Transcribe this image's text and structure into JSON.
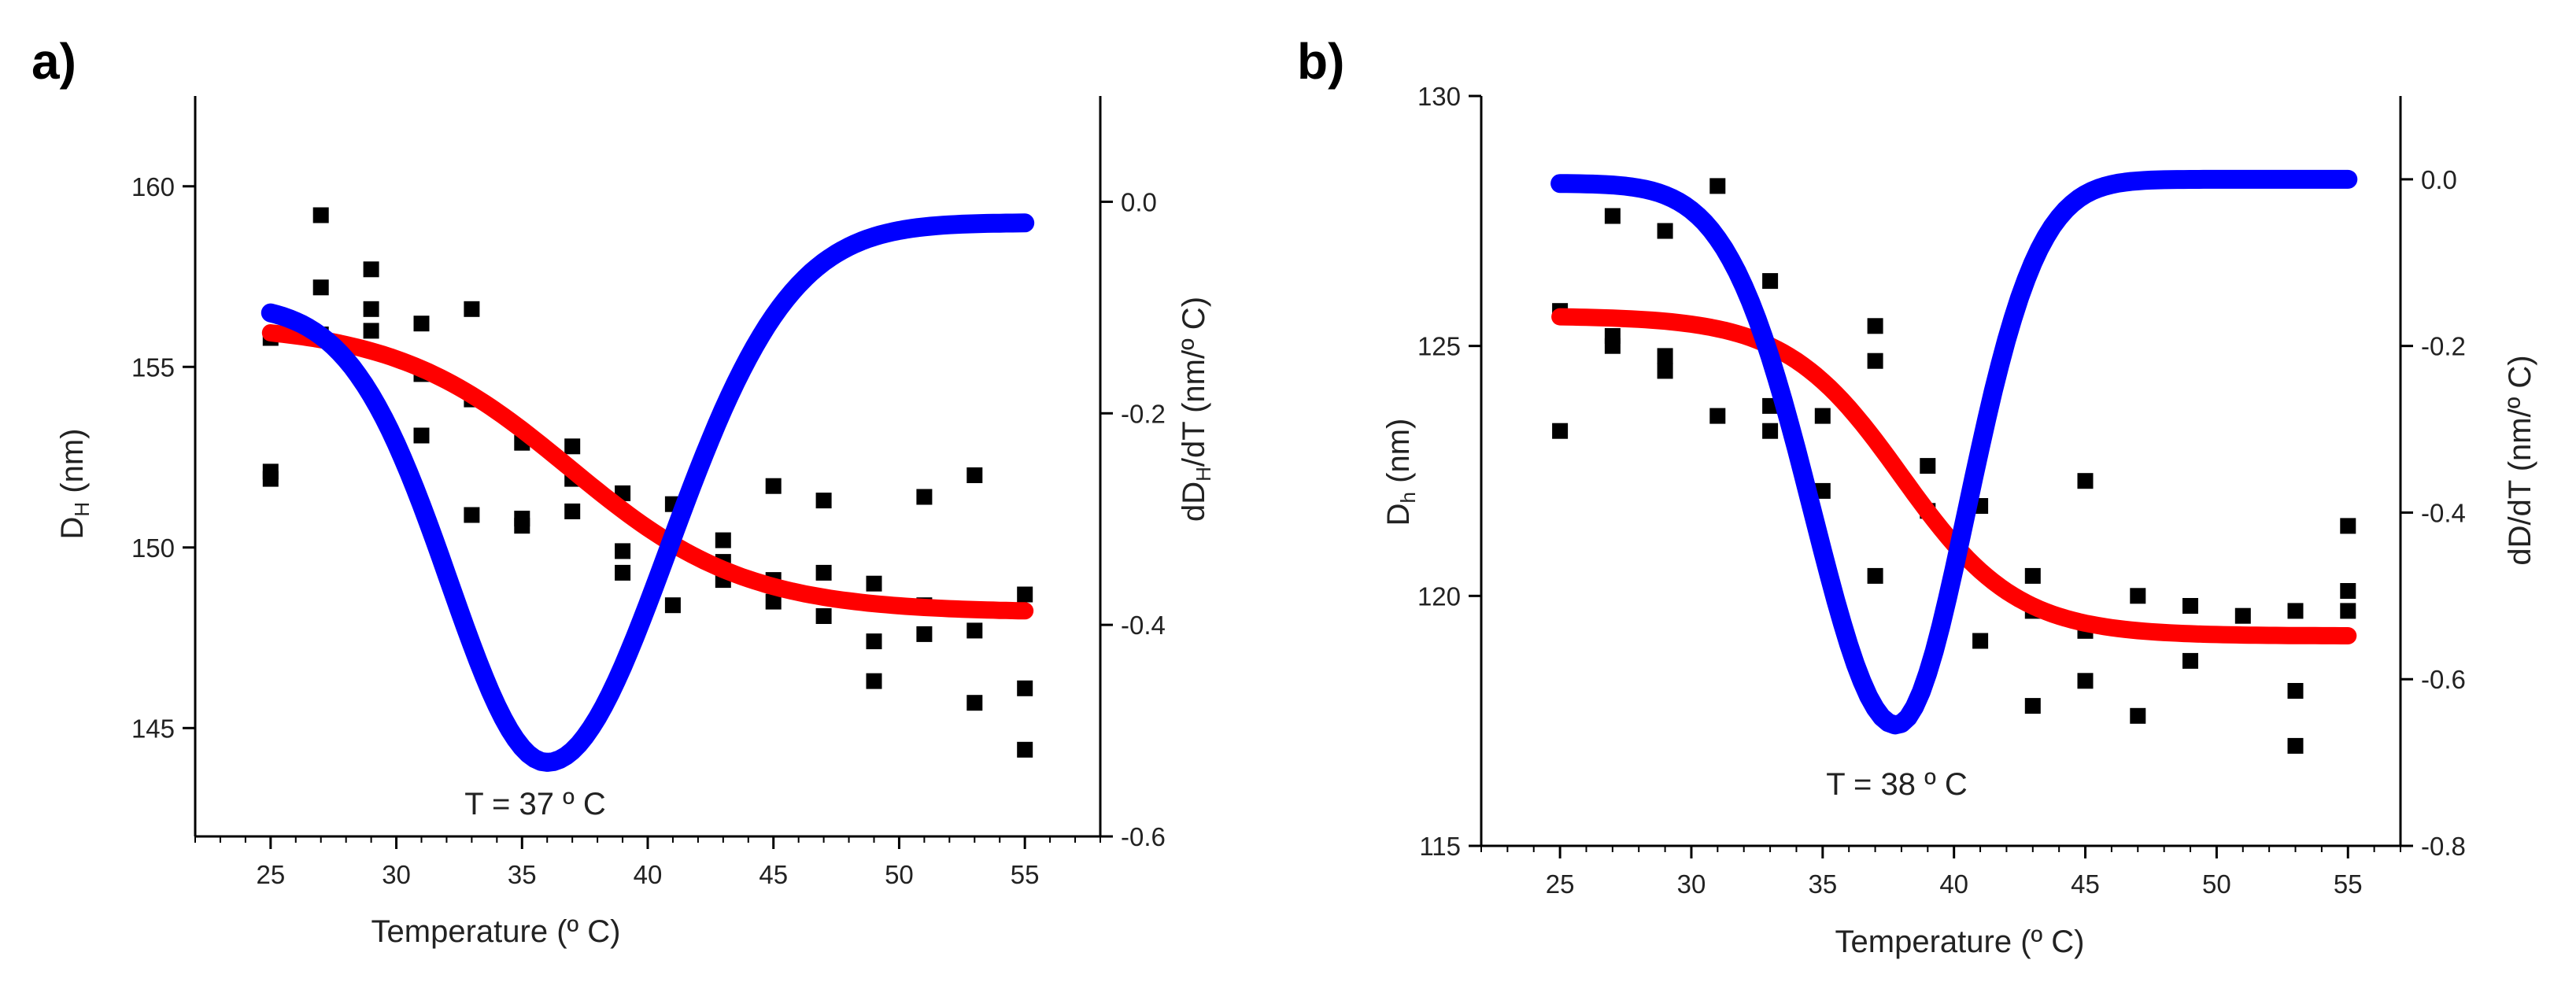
{
  "chart_data": [
    {
      "panel_label": "a)",
      "type": "scatter",
      "title": "",
      "xlabel": "Temperature (º C)",
      "ylabel": {
        "main": "D",
        "sub": "H",
        "unit": " (nm)"
      },
      "y2label": {
        "pre": "dD",
        "sub": "H",
        "post": "/dT (nm/º C)"
      },
      "annotation": "T = 37 º C",
      "xlim": [
        22,
        58
      ],
      "ylim": [
        142,
        162.5
      ],
      "y2lim": [
        -0.6,
        0.1
      ],
      "xticks": [
        25,
        30,
        35,
        40,
        45,
        50,
        55
      ],
      "yticks": [
        145,
        150,
        155,
        160
      ],
      "y2ticks": [
        -0.6,
        -0.4,
        -0.2,
        0.0
      ],
      "y2tick_labels": [
        "-0.6",
        "-0.4",
        "-0.2",
        "0.0"
      ],
      "grid": false,
      "colors": {
        "points": "#000000",
        "fit": "#ff0000",
        "derivative": "#0000ff"
      },
      "points": [
        [
          25,
          155.8
        ],
        [
          25,
          152.1
        ],
        [
          25,
          151.9
        ],
        [
          27,
          159.2
        ],
        [
          27,
          157.2
        ],
        [
          27,
          155.9
        ],
        [
          29,
          157.7
        ],
        [
          29,
          156.6
        ],
        [
          29,
          156.0
        ],
        [
          31,
          156.2
        ],
        [
          31,
          154.8
        ],
        [
          31,
          153.1
        ],
        [
          33,
          156.6
        ],
        [
          33,
          154.1
        ],
        [
          33,
          150.9
        ],
        [
          35,
          152.9
        ],
        [
          35,
          150.8
        ],
        [
          35,
          150.6
        ],
        [
          37,
          152.8
        ],
        [
          37,
          151.9
        ],
        [
          37,
          151.0
        ],
        [
          39,
          151.5
        ],
        [
          39,
          149.9
        ],
        [
          39,
          149.3
        ],
        [
          41,
          151.2
        ],
        [
          41,
          150.0
        ],
        [
          41,
          148.4
        ],
        [
          43,
          150.2
        ],
        [
          43,
          149.6
        ],
        [
          43,
          149.1
        ],
        [
          45,
          151.7
        ],
        [
          45,
          149.1
        ],
        [
          45,
          148.5
        ],
        [
          47,
          151.3
        ],
        [
          47,
          149.3
        ],
        [
          47,
          148.1
        ],
        [
          49,
          149.0
        ],
        [
          49,
          147.4
        ],
        [
          49,
          146.3
        ],
        [
          51,
          151.4
        ],
        [
          51,
          148.4
        ],
        [
          51,
          147.6
        ],
        [
          53,
          152.0
        ],
        [
          53,
          147.7
        ],
        [
          53,
          145.7
        ],
        [
          55,
          148.7
        ],
        [
          55,
          146.1
        ],
        [
          55,
          144.4
        ]
      ],
      "fit": {
        "y_high": 156.2,
        "y_low": 148.2,
        "x0": 36.9,
        "dx": 3.5,
        "x_range": [
          25,
          55
        ]
      },
      "derivative": {
        "y2_start": -0.105,
        "y2_min": -0.53,
        "y2_end": -0.02,
        "x_min": 36,
        "width_left": 5.5,
        "width_right": 6.8,
        "x_range": [
          25,
          55
        ]
      }
    },
    {
      "panel_label": "b)",
      "type": "scatter",
      "title": "",
      "xlabel": "Temperature (º C)",
      "ylabel": {
        "main": "D",
        "sub": "h",
        "unit": " (nm)"
      },
      "y2label": {
        "pre": "dD/dT (nm/º C)",
        "sub": "",
        "post": ""
      },
      "annotation": "T = 38 º C",
      "xlim": [
        22,
        57
      ],
      "ylim": [
        115,
        130
      ],
      "y2lim": [
        -0.8,
        0.1
      ],
      "xticks": [
        25,
        30,
        35,
        40,
        45,
        50,
        55
      ],
      "yticks": [
        115,
        120,
        125,
        130
      ],
      "y2ticks": [
        -0.8,
        -0.6,
        -0.4,
        -0.2,
        0.0
      ],
      "y2tick_labels": [
        "-0.8",
        "-0.6",
        "-0.4",
        "-0.2",
        "0.0"
      ],
      "grid": false,
      "colors": {
        "points": "#000000",
        "fit": "#ff0000",
        "derivative": "#0000ff"
      },
      "points": [
        [
          25,
          125.7
        ],
        [
          25,
          123.3
        ],
        [
          27,
          125.2
        ],
        [
          27,
          125.0
        ],
        [
          27,
          127.6
        ],
        [
          29,
          124.8
        ],
        [
          29,
          124.5
        ],
        [
          29,
          127.3
        ],
        [
          31,
          128.2
        ],
        [
          31,
          123.6
        ],
        [
          33,
          126.3
        ],
        [
          33,
          123.8
        ],
        [
          33,
          123.3
        ],
        [
          35,
          123.6
        ],
        [
          35,
          122.1
        ],
        [
          37,
          125.4
        ],
        [
          37,
          124.7
        ],
        [
          37,
          120.4
        ],
        [
          39,
          122.6
        ],
        [
          39,
          121.7
        ],
        [
          41,
          121.8
        ],
        [
          41,
          119.1
        ],
        [
          43,
          120.4
        ],
        [
          43,
          119.7
        ],
        [
          43,
          117.8
        ],
        [
          45,
          122.3
        ],
        [
          45,
          119.3
        ],
        [
          45,
          118.3
        ],
        [
          47,
          120.0
        ],
        [
          47,
          117.6
        ],
        [
          49,
          119.8
        ],
        [
          49,
          118.7
        ],
        [
          51,
          119.6
        ],
        [
          53,
          119.7
        ],
        [
          53,
          118.1
        ],
        [
          53,
          117.0
        ],
        [
          55,
          121.4
        ],
        [
          55,
          120.1
        ],
        [
          55,
          119.7
        ]
      ],
      "fit": {
        "y_high": 125.6,
        "y_low": 119.2,
        "x0": 38.0,
        "dx": 2.2,
        "x_range": [
          25,
          55
        ]
      },
      "derivative": {
        "y2_start": -0.005,
        "y2_min": -0.655,
        "y2_end": 0.0,
        "x_min": 37.8,
        "width_left": 4.5,
        "width_right": 3.8,
        "x_range": [
          25,
          55
        ]
      }
    }
  ]
}
